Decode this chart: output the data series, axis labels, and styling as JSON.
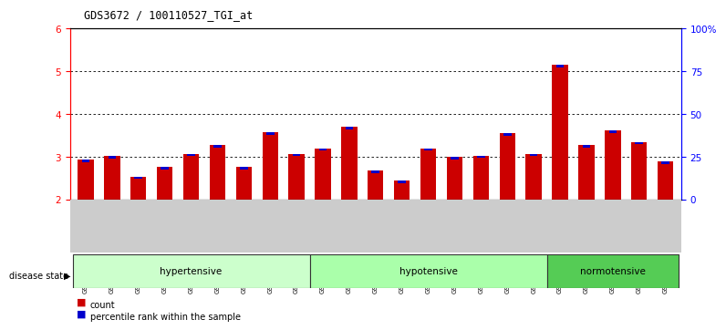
{
  "title": "GDS3672 / 100110527_TGI_at",
  "samples": [
    "GSM493487",
    "GSM493488",
    "GSM493489",
    "GSM493490",
    "GSM493491",
    "GSM493492",
    "GSM493493",
    "GSM493494",
    "GSM493495",
    "GSM493496",
    "GSM493497",
    "GSM493498",
    "GSM493499",
    "GSM493500",
    "GSM493501",
    "GSM493502",
    "GSM493503",
    "GSM493504",
    "GSM493505",
    "GSM493506",
    "GSM493507",
    "GSM493508",
    "GSM493509"
  ],
  "count_values": [
    2.93,
    3.02,
    2.54,
    2.77,
    3.07,
    3.28,
    2.76,
    3.58,
    3.07,
    3.2,
    3.7,
    2.68,
    2.45,
    3.2,
    3.0,
    3.03,
    3.55,
    3.07,
    5.15,
    3.27,
    3.62,
    3.35,
    2.89
  ],
  "percentile_values": [
    0.05,
    0.05,
    0.05,
    0.05,
    0.1,
    0.08,
    0.04,
    0.12,
    0.05,
    0.1,
    0.07,
    0.04,
    0.04,
    0.08,
    0.1,
    0.08,
    0.07,
    0.05,
    0.28,
    0.08,
    0.1,
    0.08,
    0.04
  ],
  "groups": [
    {
      "label": "hypertensive",
      "start": 0,
      "end": 9
    },
    {
      "label": "hypotensive",
      "start": 9,
      "end": 18
    },
    {
      "label": "normotensive",
      "start": 18,
      "end": 23
    }
  ],
  "group_colors": {
    "hypertensive": "#ccffcc",
    "hypotensive": "#aaffaa",
    "normotensive": "#55cc55"
  },
  "ylim_left": [
    2.0,
    6.0
  ],
  "ylim_right": [
    0,
    100
  ],
  "yticks_left": [
    2,
    3,
    4,
    5,
    6
  ],
  "yticks_right": [
    0,
    25,
    50,
    75,
    100
  ],
  "bar_color_count": "#cc0000",
  "bar_color_pct": "#0000cc",
  "background_color": "#ffffff",
  "tick_bg_color": "#cccccc",
  "legend_count_label": "count",
  "legend_pct_label": "percentile rank within the sample",
  "disease_state_label": "disease state"
}
